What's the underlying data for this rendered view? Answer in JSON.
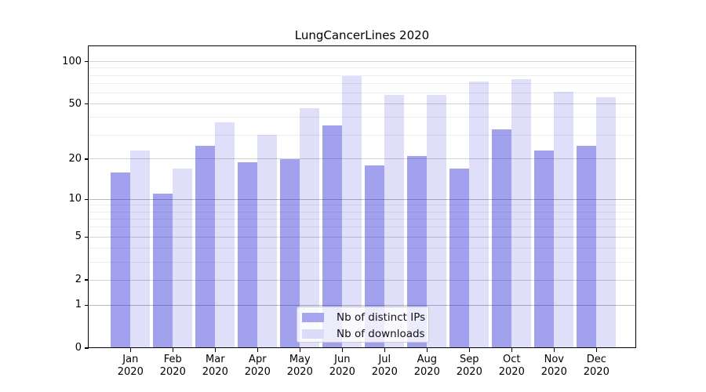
{
  "title": "LungCancerLines 2020",
  "chart_data": {
    "type": "bar",
    "title": "LungCancerLines 2020",
    "x_labels": [
      {
        "line1": "Jan",
        "line2": "2020"
      },
      {
        "line1": "Feb",
        "line2": "2020"
      },
      {
        "line1": "Mar",
        "line2": "2020"
      },
      {
        "line1": "Apr",
        "line2": "2020"
      },
      {
        "line1": "May",
        "line2": "2020"
      },
      {
        "line1": "Jun",
        "line2": "2020"
      },
      {
        "line1": "Jul",
        "line2": "2020"
      },
      {
        "line1": "Aug",
        "line2": "2020"
      },
      {
        "line1": "Sep",
        "line2": "2020"
      },
      {
        "line1": "Oct",
        "line2": "2020"
      },
      {
        "line1": "Nov",
        "line2": "2020"
      },
      {
        "line1": "Dec",
        "line2": "2020"
      }
    ],
    "series": [
      {
        "name": "Nb of distinct IPs",
        "values": [
          16,
          11,
          25,
          19,
          20,
          35,
          18,
          21,
          17,
          33,
          23,
          25
        ],
        "color": "rgba(31,31,214,0.42)",
        "legend_color": "#a5a5ef"
      },
      {
        "name": "Nb of downloads",
        "values": [
          23,
          17,
          37,
          30,
          47,
          79,
          58,
          58,
          72,
          75,
          61,
          56
        ],
        "color": "rgba(31,31,214,0.14)",
        "legend_color": "#dcdcf8"
      }
    ],
    "yscale": "log10(value+1)",
    "ylim": [
      0,
      130
    ],
    "y_major_ticks": [
      0,
      1,
      2,
      5,
      10,
      20,
      50,
      100
    ],
    "y_minor_gridlines": [
      3,
      4,
      6,
      7,
      8,
      9,
      30,
      40,
      60,
      70,
      80,
      90
    ],
    "grid": true,
    "legend": {
      "position": "lower center",
      "items": [
        {
          "label": "Nb of distinct IPs",
          "color": "#a5a5ef"
        },
        {
          "label": "Nb of downloads",
          "color": "#dcdcf8"
        }
      ]
    },
    "colors": {
      "decade_gridline": "#b9b9b9",
      "major_gridline": "#d2d2d2",
      "minor_gridline": "#ededed",
      "spine": "#000000"
    }
  }
}
